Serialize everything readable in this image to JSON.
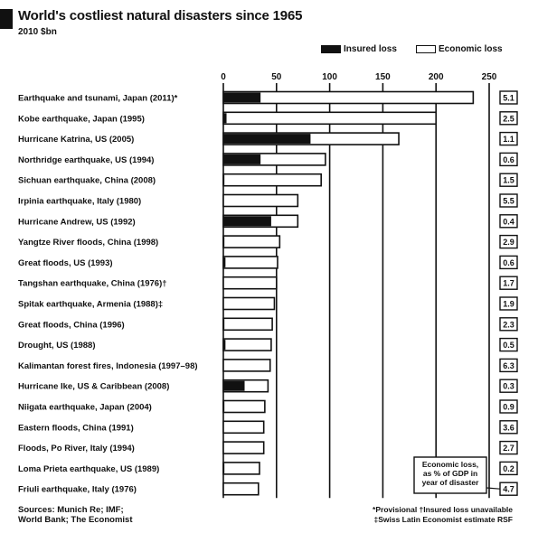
{
  "title": "World's costliest natural disasters since 1965",
  "subtitle": "2010 $bn",
  "legend": {
    "insured": "Insured loss",
    "economic": "Economic loss"
  },
  "colors": {
    "insured": "#111111",
    "economic": "#ffffff",
    "ink": "#111111"
  },
  "callout": "Economic loss, as % of GDP in year of disaster",
  "footer": {
    "source_line1": "Sources: Munich Re; IMF;",
    "source_line2": "World Bank; The Economist",
    "note_line1": "*Provisional   †Insured loss unavailable",
    "note_line2": "‡Swiss Latin Economist estimate RSF"
  },
  "chart_data": {
    "type": "bar",
    "orientation": "horizontal",
    "stacked": false,
    "title": "World's costliest natural disasters since 1965",
    "subtitle": "2010 $bn",
    "xlim": [
      0,
      250
    ],
    "xticks": [
      0,
      50,
      100,
      150,
      200,
      250
    ],
    "grid": true,
    "legend_position": "top-right",
    "categories": [
      "Earthquake and tsunami, Japan (2011)*",
      "Kobe earthquake, Japan (1995)",
      "Hurricane Katrina, US (2005)",
      "Northridge earthquake, US (1994)",
      "Sichuan earthquake, China (2008)",
      "Irpinia earthquake, Italy (1980)",
      "Hurricane Andrew, US (1992)",
      "Yangtze River floods, China (1998)",
      "Great floods, US (1993)",
      "Tangshan earthquake, China (1976)†",
      "Spitak earthquake, Armenia (1988)‡",
      "Great floods, China (1996)",
      "Drought, US (1988)",
      "Kalimantan forest fires, Indonesia (1997–98)",
      "Hurricane Ike, US & Caribbean (2008)",
      "Niigata earthquake, Japan (2004)",
      "Eastern floods, China (1991)",
      "Floods, Po River, Italy (1994)",
      "Loma Prieta earthquake, US (1989)",
      "Friuli earthquake, Italy (1976)"
    ],
    "series": [
      {
        "name": "Insured loss",
        "values": [
          35,
          3,
          82,
          35,
          1,
          0,
          45,
          1,
          2,
          0,
          0,
          1,
          2,
          0,
          20,
          1,
          0,
          0,
          1,
          0
        ]
      },
      {
        "name": "Economic loss",
        "values": [
          235,
          200,
          165,
          96,
          92,
          70,
          70,
          53,
          51,
          50,
          48,
          46,
          45,
          44,
          42,
          39,
          38,
          38,
          34,
          33
        ]
      }
    ],
    "gdp_share_pct": [
      "5.1",
      "2.5",
      "1.1",
      "0.6",
      "1.5",
      "5.5",
      "0.4",
      "2.9",
      "0.6",
      "1.7",
      "1.9",
      "2.3",
      "0.5",
      "6.3",
      "0.3",
      "0.9",
      "3.6",
      "2.7",
      "0.2",
      "4.7"
    ]
  }
}
